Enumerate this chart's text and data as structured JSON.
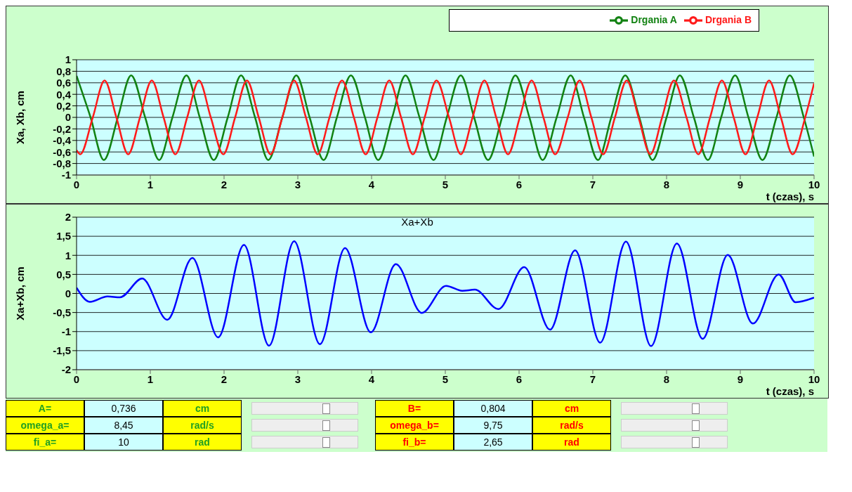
{
  "chart_data": [
    {
      "type": "line",
      "xlabel": "t (czas),  s",
      "ylabel": "Xa, Xb, cm",
      "legend": "top right",
      "grid": "y",
      "xlim": [
        0,
        10
      ],
      "xticks": [
        0,
        1,
        2,
        3,
        4,
        5,
        6,
        7,
        8,
        9,
        10
      ],
      "ylim": [
        -1,
        1
      ],
      "yticks": [
        -1,
        {
          "value": -0.8,
          "label": "-0,8"
        },
        {
          "value": -0.6,
          "label": "-0,6"
        },
        {
          "value": -0.4,
          "label": "-0,4"
        },
        {
          "value": -0.2,
          "label": "-0,2"
        },
        0,
        {
          "value": 0.2,
          "label": "0,2"
        },
        {
          "value": 0.4,
          "label": "0,4"
        },
        {
          "value": 0.6,
          "label": "0,6"
        },
        {
          "value": 0.8,
          "label": "0,8"
        },
        1
      ],
      "series": [
        {
          "name": "Drgania A",
          "color": "#128212",
          "x": [
            0,
            0.19,
            0.37,
            0.56,
            0.74,
            0.93,
            1.12,
            1.3,
            1.49,
            1.67,
            1.86,
            2.05,
            2.23,
            2.42,
            2.6,
            2.79,
            2.98,
            3.16,
            3.35,
            3.53,
            3.72,
            3.91,
            4.09,
            4.28,
            4.46,
            4.65,
            4.84,
            5.02,
            5.21,
            5.39,
            5.58,
            5.77,
            5.95,
            6.14,
            6.32,
            6.51,
            6.7,
            6.88,
            7.07,
            7.25,
            7.44,
            7.63,
            7.81,
            8,
            8.18,
            8.37,
            8.56,
            8.74,
            8.93,
            9.11,
            9.3,
            9.49,
            9.67,
            9.86,
            10
          ],
          "values": [
            0.72,
            0,
            -0.74,
            0,
            0.73,
            0,
            -0.74,
            0,
            0.73,
            0,
            -0.74,
            0,
            0.73,
            0,
            -0.74,
            0,
            0.73,
            0,
            -0.74,
            0,
            0.73,
            0,
            -0.74,
            0,
            0.73,
            0,
            -0.74,
            0,
            0.73,
            0,
            -0.74,
            0,
            0.73,
            0,
            -0.74,
            0,
            0.73,
            0,
            -0.74,
            0,
            0.73,
            0,
            -0.74,
            0,
            0.73,
            0,
            -0.74,
            0,
            0.73,
            0,
            -0.74,
            0,
            0.73,
            0,
            -0.68
          ]
        },
        {
          "name": "Drgania B",
          "color": "#ff1a1a",
          "x": [
            0,
            0.05,
            0.22,
            0.38,
            0.54,
            0.7,
            0.86,
            1.02,
            1.18,
            1.34,
            1.5,
            1.66,
            1.82,
            1.99,
            2.15,
            2.31,
            2.47,
            2.63,
            2.79,
            2.95,
            3.11,
            3.27,
            3.43,
            3.6,
            3.76,
            3.92,
            4.08,
            4.24,
            4.4,
            4.56,
            4.72,
            4.88,
            5.05,
            5.21,
            5.37,
            5.53,
            5.69,
            5.85,
            6.01,
            6.17,
            6.33,
            6.49,
            6.66,
            6.82,
            6.98,
            7.14,
            7.3,
            7.46,
            7.62,
            7.78,
            7.94,
            8.1,
            8.27,
            8.43,
            8.59,
            8.75,
            8.91,
            9.07,
            9.23,
            9.39,
            9.55,
            9.71,
            9.88,
            10
          ],
          "values": [
            -0.57,
            -0.64,
            0,
            0.64,
            0,
            -0.64,
            0,
            0.64,
            0,
            -0.64,
            0,
            0.64,
            0,
            -0.64,
            0,
            0.64,
            0,
            -0.64,
            0,
            0.64,
            0,
            -0.64,
            0,
            0.64,
            0,
            -0.64,
            0,
            0.64,
            0,
            -0.64,
            0,
            0.64,
            0,
            -0.64,
            0,
            0.64,
            0,
            -0.64,
            0,
            0.64,
            0,
            -0.64,
            0,
            0.64,
            0,
            -0.64,
            0,
            0.64,
            0,
            -0.64,
            0,
            0.64,
            0,
            -0.64,
            0,
            0.64,
            0,
            -0.64,
            0,
            0.64,
            0,
            -0.64,
            0,
            0.59
          ]
        }
      ]
    },
    {
      "type": "line",
      "title": "Xa+Xb",
      "xlabel": "t (czas), s",
      "ylabel": "Xa+Xb, cm",
      "grid": "y",
      "xlim": [
        0,
        10
      ],
      "xticks": [
        0,
        1,
        2,
        3,
        4,
        5,
        6,
        7,
        8,
        9,
        10
      ],
      "ylim": [
        -2,
        2
      ],
      "yticks": [
        -2,
        {
          "value": -1.5,
          "label": "-1,5"
        },
        -1,
        {
          "value": -0.5,
          "label": "-0,5"
        },
        0,
        {
          "value": 0.5,
          "label": "0,5"
        },
        1,
        {
          "value": 1.5,
          "label": "1,5"
        },
        2
      ],
      "series": [
        {
          "color": "#0000ff",
          "x": [
            0,
            0.18,
            0.42,
            0.59,
            0.89,
            1.23,
            1.57,
            1.92,
            2.27,
            2.61,
            2.95,
            3.3,
            3.64,
            3.99,
            4.33,
            4.68,
            5.01,
            5.23,
            5.4,
            5.72,
            6.07,
            6.42,
            6.76,
            7.1,
            7.45,
            7.79,
            8.14,
            8.49,
            8.83,
            9.17,
            9.52,
            9.75,
            10
          ],
          "values": [
            0.15,
            -0.22,
            -0.08,
            -0.1,
            0.39,
            -0.69,
            0.93,
            -1.15,
            1.27,
            -1.37,
            1.37,
            -1.33,
            1.19,
            -1.02,
            0.77,
            -0.51,
            0.2,
            0.07,
            0.1,
            -0.41,
            0.69,
            -0.95,
            1.13,
            -1.29,
            1.36,
            -1.38,
            1.31,
            -1.19,
            1.01,
            -0.79,
            0.5,
            -0.23,
            -0.11
          ]
        }
      ]
    },
    {
      "type": "other",
      "annotations": [
        "A=",
        "0,736",
        "cm",
        "B=",
        "0,804",
        "cm",
        "omega_a=",
        "8,45",
        "rad/s",
        "omega_b=",
        "9,75",
        "rad/s",
        "fi_a=",
        "10",
        "rad",
        "fi_b=",
        "2,65",
        "rad"
      ]
    }
  ]
}
